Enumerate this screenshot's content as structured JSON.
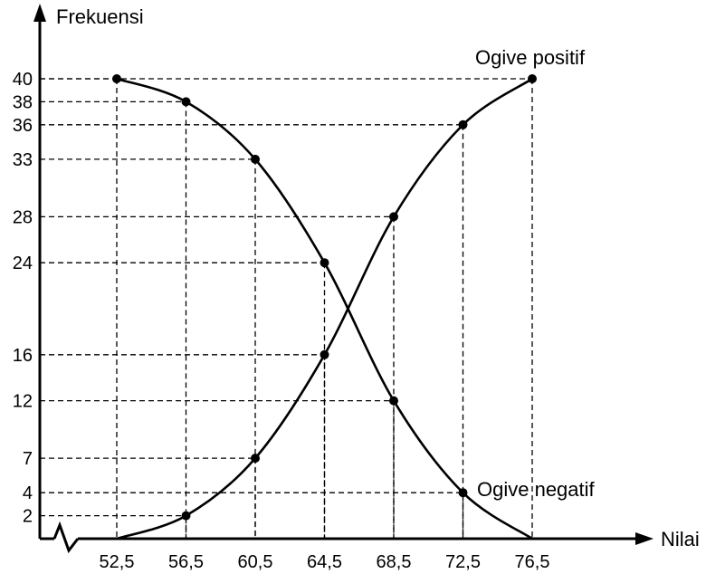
{
  "chart_data": {
    "type": "line",
    "ylabel": "Frekuensi",
    "xlabel": "Nilai",
    "x_ticks": [
      "52,5",
      "56,5",
      "60,5",
      "64,5",
      "68,5",
      "72,5",
      "76,5"
    ],
    "y_ticks": [
      "2",
      "4",
      "7",
      "12",
      "16",
      "24",
      "28",
      "33",
      "36",
      "38",
      "40"
    ],
    "xlim": [
      52.5,
      76.5
    ],
    "ylim": [
      0,
      40
    ],
    "grid": "dashed guide lines from each point to both axes",
    "legend": "none",
    "axis_break": "zigzag on x-axis near origin",
    "series": [
      {
        "name": "Ogive positif",
        "x": [
          52.5,
          56.5,
          60.5,
          64.5,
          68.5,
          72.5,
          76.5
        ],
        "y": [
          0,
          2,
          7,
          16,
          28,
          36,
          40
        ],
        "markers": [
          false,
          true,
          true,
          true,
          true,
          true,
          true
        ]
      },
      {
        "name": "Ogive negatif",
        "x": [
          52.5,
          56.5,
          60.5,
          64.5,
          68.5,
          72.5,
          76.5
        ],
        "y": [
          40,
          38,
          33,
          24,
          12,
          4,
          0
        ],
        "markers": [
          true,
          true,
          true,
          true,
          true,
          true,
          false
        ]
      }
    ]
  }
}
